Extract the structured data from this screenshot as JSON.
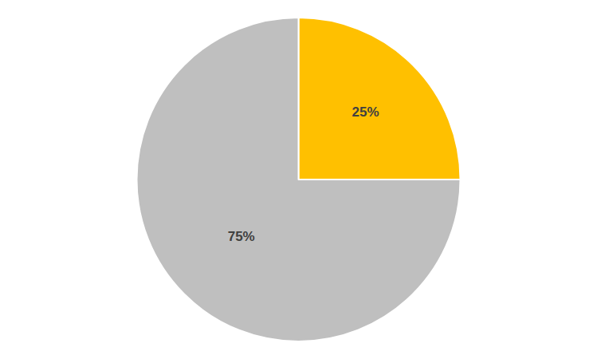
{
  "chart_data": {
    "type": "pie",
    "values": [
      25,
      75
    ],
    "value_labels": [
      "25%",
      "75%"
    ],
    "colors": [
      "#ffc000",
      "#bfbfbf"
    ],
    "data_labels": true
  }
}
